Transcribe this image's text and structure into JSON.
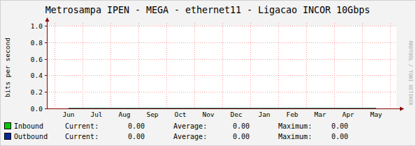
{
  "chart_data": {
    "type": "line",
    "title": "Metrosampa IPEN - MEGA - ethernet11 - Ligacao INCOR 10Gbps",
    "y_label": "bits per second",
    "watermark": "RRDTOOL / TOBI OETIKER",
    "categories": [
      "Jun",
      "Jul",
      "Aug",
      "Sep",
      "Oct",
      "Nov",
      "Dec",
      "Jan",
      "Feb",
      "Mar",
      "Apr",
      "May"
    ],
    "ylim": [
      0,
      1
    ],
    "yticks": [
      {
        "value": 0,
        "label": "0.0"
      },
      0.2,
      0.4,
      0.6,
      0.8,
      {
        "value": 1,
        "label": "1.0"
      }
    ],
    "grid": true,
    "legend": "bottom",
    "stat_names": [
      "Current:",
      "Average:",
      "Maximum:"
    ],
    "series": [
      {
        "name": "Inbound",
        "color": "#00cc00",
        "type": "area",
        "values": [
          0,
          0,
          0,
          0,
          0,
          0,
          0,
          0,
          0,
          0,
          0,
          0
        ],
        "stats": [
          0,
          0,
          0
        ],
        "stat_labels": [
          "0.00",
          "0.00",
          "0.00"
        ]
      },
      {
        "name": "Outbound",
        "color": "#002a97",
        "type": "line",
        "values": [
          0,
          0,
          0,
          0,
          0,
          0,
          0,
          0,
          0,
          0,
          0,
          0
        ],
        "stats": [
          0,
          0,
          0
        ],
        "stat_labels": [
          "0.00",
          "0.00",
          "0.00"
        ]
      }
    ]
  }
}
